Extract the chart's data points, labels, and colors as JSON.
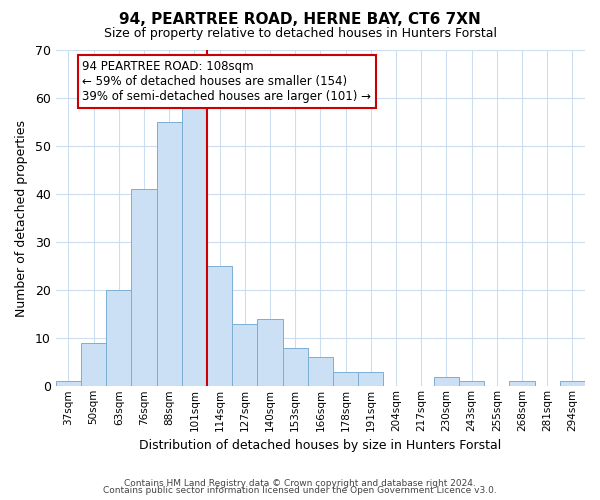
{
  "title": "94, PEARTREE ROAD, HERNE BAY, CT6 7XN",
  "subtitle": "Size of property relative to detached houses in Hunters Forstal",
  "xlabel": "Distribution of detached houses by size in Hunters Forstal",
  "ylabel": "Number of detached properties",
  "bin_labels": [
    "37sqm",
    "50sqm",
    "63sqm",
    "76sqm",
    "88sqm",
    "101sqm",
    "114sqm",
    "127sqm",
    "140sqm",
    "153sqm",
    "166sqm",
    "178sqm",
    "191sqm",
    "204sqm",
    "217sqm",
    "230sqm",
    "243sqm",
    "255sqm",
    "268sqm",
    "281sqm",
    "294sqm"
  ],
  "bar_heights": [
    1,
    9,
    20,
    41,
    55,
    58,
    25,
    13,
    14,
    8,
    6,
    3,
    3,
    0,
    0,
    2,
    1,
    0,
    1,
    0,
    1
  ],
  "bar_color": "#cce0f5",
  "bar_edge_color": "#7bafd4",
  "vline_position": 6.0,
  "vline_color": "#cc0000",
  "ylim": [
    0,
    70
  ],
  "yticks": [
    0,
    10,
    20,
    30,
    40,
    50,
    60,
    70
  ],
  "annotation_title": "94 PEARTREE ROAD: 108sqm",
  "annotation_line1": "← 59% of detached houses are smaller (154)",
  "annotation_line2": "39% of semi-detached houses are larger (101) →",
  "annotation_box_color": "#ffffff",
  "annotation_box_edge": "#cc0000",
  "footer_line1": "Contains HM Land Registry data © Crown copyright and database right 2024.",
  "footer_line2": "Contains public sector information licensed under the Open Government Licence v3.0.",
  "background_color": "#ffffff",
  "grid_color": "#ccddf0"
}
